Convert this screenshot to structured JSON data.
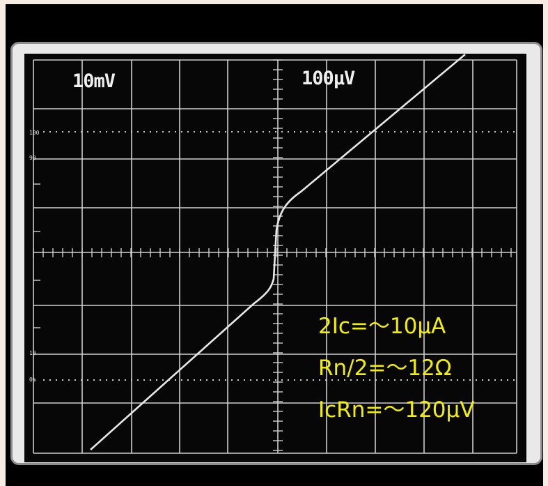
{
  "screen": {
    "channel_1_range": "10mV",
    "channel_2_range": "100µV",
    "graticule_labels": {
      "top": "100",
      "upper": "90",
      "lower": "10",
      "bottom": "0%"
    }
  },
  "annotations": [
    "2Ic=～10μA",
    "Rn/2=～12Ω",
    "IcRn=～120μV"
  ],
  "colors": {
    "trace": "#e8e8e8",
    "annotation_text": "#f2f000",
    "bezel": "#000000",
    "background": "#f6ece3"
  }
}
